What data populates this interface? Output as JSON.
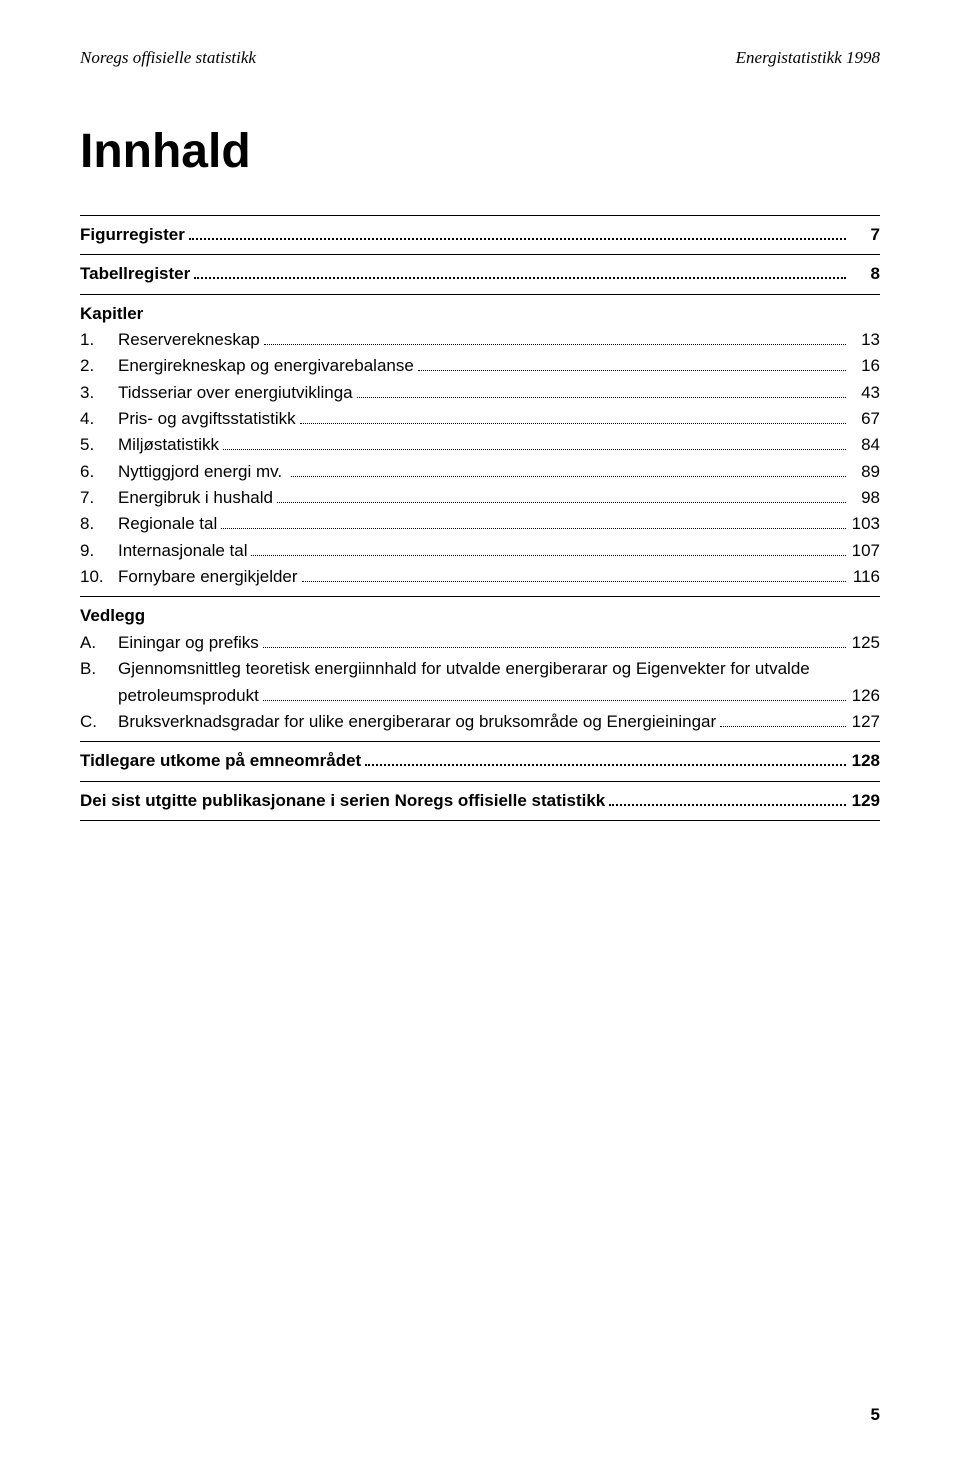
{
  "header": {
    "left": "Noregs offisielle statistikk",
    "right": "Energistatistikk 1998"
  },
  "title": "Innhald",
  "sections": [
    {
      "lines": [
        {
          "bold": true,
          "num": "",
          "label": "Figurregister",
          "page": "7"
        }
      ]
    },
    {
      "lines": [
        {
          "bold": true,
          "num": "",
          "label": "Tabellregister",
          "page": "8"
        }
      ]
    },
    {
      "heading": "Kapitler",
      "lines": [
        {
          "num": "1.",
          "label": "Reserverekneskap",
          "page": "13"
        },
        {
          "num": "2.",
          "label": "Energirekneskap og energivarebalanse",
          "page": "16"
        },
        {
          "num": "3.",
          "label": "Tidsseriar over energiutviklinga",
          "page": "43"
        },
        {
          "num": "4.",
          "label": "Pris- og avgiftsstatistikk",
          "page": "67"
        },
        {
          "num": "5.",
          "label": "Miljøstatistikk",
          "page": "84"
        },
        {
          "num": "6.",
          "label": "Nyttiggjord energi mv. ",
          "page": "89"
        },
        {
          "num": "7.",
          "label": "Energibruk i hushald",
          "page": "98"
        },
        {
          "num": "8.",
          "label": "Regionale tal",
          "page": "103"
        },
        {
          "num": "9.",
          "label": "Internasjonale tal",
          "page": "107"
        },
        {
          "num": "10.",
          "label": "Fornybare energikjelder",
          "page": "116"
        }
      ]
    },
    {
      "heading": "Vedlegg",
      "lines": [
        {
          "num": "A.",
          "label": "Einingar og prefiks",
          "page": "125"
        },
        {
          "num": "B.",
          "label": "Gjennomsnittleg teoretisk energiinnhald for utvalde energiberarar og Eigenvekter for utvalde",
          "wrapLabel": "petroleumsprodukt",
          "page": "126"
        },
        {
          "num": "C.",
          "label": "Bruksverknadsgradar for ulike energiberarar og bruksområde og Energieiningar",
          "page": "127"
        }
      ]
    },
    {
      "lines": [
        {
          "bold": true,
          "num": "",
          "label": "Tidlegare utkome på emneområdet",
          "page": "128"
        }
      ]
    },
    {
      "lines": [
        {
          "bold": true,
          "num": "",
          "label": "Dei sist utgitte publikasjonane i serien Noregs offisielle statistikk",
          "page": "129"
        }
      ]
    }
  ],
  "pageNumber": "5"
}
